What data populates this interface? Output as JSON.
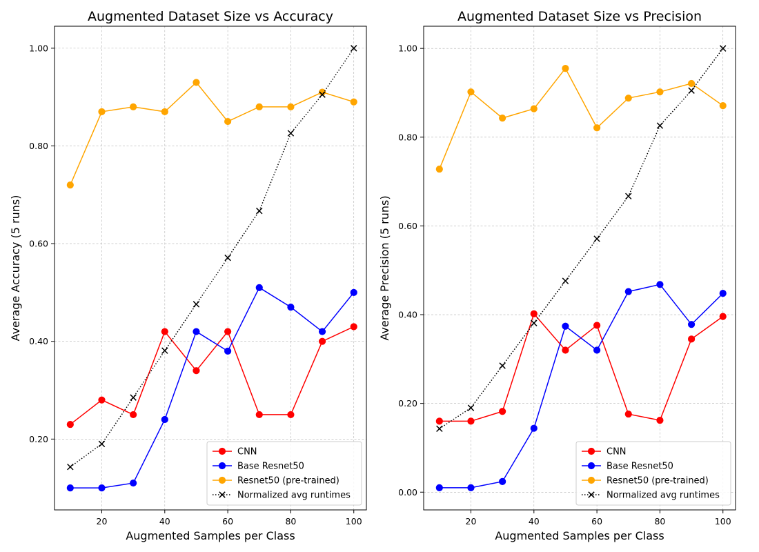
{
  "chart_data": [
    {
      "type": "line",
      "title": "Augmented Dataset Size vs Accuracy",
      "xlabel": "Augmented Samples per Class",
      "ylabel": "Average Accuracy (5 runs)",
      "x": [
        10,
        20,
        30,
        40,
        50,
        60,
        70,
        80,
        90,
        100
      ],
      "xlim": [
        5,
        104
      ],
      "ylim": [
        0.055,
        1.045
      ],
      "xticks": [
        20,
        40,
        60,
        80,
        100
      ],
      "xtick_labels": [
        "20",
        "40",
        "60",
        "80",
        "100"
      ],
      "yticks": [
        0.2,
        0.4,
        0.6,
        0.8,
        1.0
      ],
      "ytick_labels": [
        "0.20",
        "0.40",
        "0.60",
        "0.80",
        "1.00"
      ],
      "grid": true,
      "legend_position": "lower-right",
      "series": [
        {
          "name": "CNN",
          "color": "#ff0000",
          "marker": "circle",
          "style": "solid",
          "values": [
            0.23,
            0.28,
            0.25,
            0.42,
            0.34,
            0.42,
            0.25,
            0.25,
            0.4,
            0.43
          ]
        },
        {
          "name": "Base Resnet50",
          "color": "#0000ff",
          "marker": "circle",
          "style": "solid",
          "values": [
            0.1,
            0.1,
            0.11,
            0.24,
            0.42,
            0.38,
            0.51,
            0.47,
            0.42,
            0.5
          ]
        },
        {
          "name": "Resnet50 (pre-trained)",
          "color": "#ffa500",
          "marker": "circle",
          "style": "solid",
          "values": [
            0.72,
            0.87,
            0.88,
            0.87,
            0.93,
            0.85,
            0.88,
            0.88,
            0.91,
            0.89
          ]
        },
        {
          "name": "Normalized avg runtimes",
          "color": "#000000",
          "marker": "x",
          "style": "dotted",
          "values": [
            0.143,
            0.19,
            0.285,
            0.381,
            0.476,
            0.571,
            0.667,
            0.826,
            0.905,
            1.0
          ]
        }
      ]
    },
    {
      "type": "line",
      "title": "Augmented Dataset Size vs Precision",
      "xlabel": "Augmented Samples per Class",
      "ylabel": "Average Precision (5 runs)",
      "x": [
        10,
        20,
        30,
        40,
        50,
        60,
        70,
        80,
        90,
        100
      ],
      "xlim": [
        5,
        104
      ],
      "ylim": [
        -0.04,
        1.05
      ],
      "xticks": [
        20,
        40,
        60,
        80,
        100
      ],
      "xtick_labels": [
        "20",
        "40",
        "60",
        "80",
        "100"
      ],
      "yticks": [
        0.0,
        0.2,
        0.4,
        0.6,
        0.8,
        1.0
      ],
      "ytick_labels": [
        "0.00",
        "0.20",
        "0.40",
        "0.60",
        "0.80",
        "1.00"
      ],
      "grid": true,
      "legend_position": "lower-right",
      "series": [
        {
          "name": "CNN",
          "color": "#ff0000",
          "marker": "circle",
          "style": "solid",
          "values": [
            0.16,
            0.16,
            0.182,
            0.402,
            0.32,
            0.376,
            0.176,
            0.162,
            0.345,
            0.396
          ]
        },
        {
          "name": "Base Resnet50",
          "color": "#0000ff",
          "marker": "circle",
          "style": "solid",
          "values": [
            0.01,
            0.01,
            0.024,
            0.144,
            0.374,
            0.32,
            0.452,
            0.468,
            0.378,
            0.448
          ]
        },
        {
          "name": "Resnet50 (pre-trained)",
          "color": "#ffa500",
          "marker": "circle",
          "style": "solid",
          "values": [
            0.728,
            0.902,
            0.843,
            0.864,
            0.955,
            0.821,
            0.888,
            0.902,
            0.921,
            0.871
          ]
        },
        {
          "name": "Normalized avg runtimes",
          "color": "#000000",
          "marker": "x",
          "style": "dotted",
          "values": [
            0.143,
            0.19,
            0.285,
            0.381,
            0.476,
            0.571,
            0.667,
            0.826,
            0.905,
            1.0
          ]
        }
      ]
    }
  ]
}
